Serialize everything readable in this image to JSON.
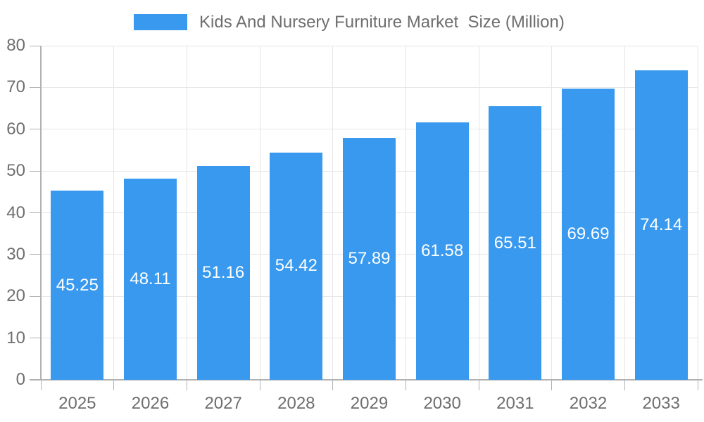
{
  "legend": {
    "label": "Kids And Nursery Furniture Market  Size (Million)"
  },
  "chart_data": {
    "type": "bar",
    "title": "Kids And Nursery Furniture Market  Size (Million)",
    "categories": [
      "2025",
      "2026",
      "2027",
      "2028",
      "2029",
      "2030",
      "2031",
      "2032",
      "2033"
    ],
    "values": [
      45.25,
      48.11,
      51.16,
      54.42,
      57.89,
      61.58,
      65.51,
      69.69,
      74.14
    ],
    "value_labels": [
      "45.25",
      "48.11",
      "51.16",
      "54.42",
      "57.89",
      "61.58",
      "65.51",
      "69.69",
      "74.14"
    ],
    "xlabel": "",
    "ylabel": "",
    "ylim": [
      0,
      80
    ],
    "ytick_step": 10,
    "ytick_labels": [
      "0",
      "10",
      "20",
      "30",
      "40",
      "50",
      "60",
      "70",
      "80"
    ],
    "grid": true,
    "legend_position": "top",
    "colors": {
      "bar": "#3899ee",
      "grid_line": "#e6e6e6",
      "axis_line": "#b1b1b1",
      "tick_text": "#6e6e6e",
      "value_text": "#ffffff",
      "background": "#ffffff"
    }
  }
}
